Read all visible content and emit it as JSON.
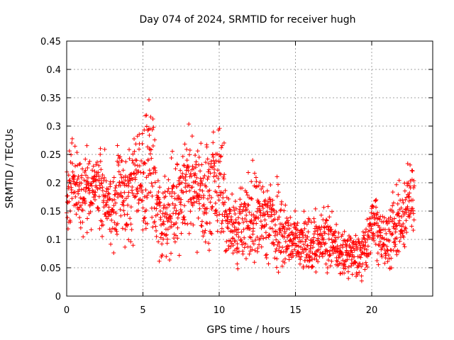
{
  "chart_data": {
    "type": "scatter",
    "title": "Day 074 of 2024, SRMTID for receiver hugh",
    "xlabel": "GPS time / hours",
    "ylabel": "SRMTID / TECUs",
    "xlim": [
      0,
      24
    ],
    "ylim": [
      0,
      0.45
    ],
    "xticks": [
      0,
      5,
      10,
      15,
      20
    ],
    "xtick_labels": [
      "0",
      "5",
      "10",
      "15",
      "20"
    ],
    "yticks": [
      0,
      0.05,
      0.1,
      0.15,
      0.2,
      0.25,
      0.3,
      0.35,
      0.4,
      0.45
    ],
    "ytick_labels": [
      "0",
      "0.05",
      "0.1",
      "0.15",
      "0.2",
      "0.25",
      "0.3",
      "0.35",
      "0.4",
      "0.45"
    ],
    "grid": true,
    "marker": "+",
    "color": "#ff0000",
    "series": [
      {
        "name": "SRMTID",
        "description": "dense scatter of roughly 5-minute samples per satellite; approximate trend values given below",
        "x": [
          0.0,
          0.5,
          1.0,
          1.5,
          2.0,
          2.5,
          3.0,
          3.5,
          4.0,
          4.5,
          5.0,
          5.5,
          6.0,
          6.5,
          7.0,
          7.5,
          8.0,
          8.5,
          9.0,
          9.5,
          10.0,
          10.5,
          11.0,
          11.5,
          12.0,
          12.5,
          13.0,
          13.5,
          14.0,
          14.5,
          15.0,
          15.5,
          16.0,
          16.5,
          17.0,
          17.5,
          18.0,
          18.5,
          19.0,
          19.5,
          20.0,
          20.5,
          21.0,
          21.5,
          22.0,
          22.5
        ],
        "y": [
          0.17,
          0.2,
          0.18,
          0.19,
          0.2,
          0.17,
          0.16,
          0.19,
          0.18,
          0.21,
          0.2,
          0.23,
          0.15,
          0.12,
          0.17,
          0.18,
          0.2,
          0.18,
          0.17,
          0.2,
          0.22,
          0.14,
          0.11,
          0.13,
          0.14,
          0.13,
          0.14,
          0.13,
          0.12,
          0.11,
          0.1,
          0.09,
          0.09,
          0.1,
          0.1,
          0.09,
          0.07,
          0.08,
          0.07,
          0.08,
          0.13,
          0.11,
          0.1,
          0.12,
          0.14,
          0.17
        ],
        "spread": [
          0.05,
          0.06,
          0.05,
          0.05,
          0.05,
          0.05,
          0.05,
          0.07,
          0.07,
          0.06,
          0.07,
          0.09,
          0.06,
          0.06,
          0.06,
          0.07,
          0.07,
          0.06,
          0.06,
          0.07,
          0.08,
          0.05,
          0.04,
          0.05,
          0.06,
          0.06,
          0.05,
          0.05,
          0.05,
          0.04,
          0.04,
          0.035,
          0.035,
          0.04,
          0.04,
          0.035,
          0.03,
          0.035,
          0.03,
          0.03,
          0.04,
          0.04,
          0.04,
          0.05,
          0.05,
          0.05
        ]
      }
    ]
  }
}
